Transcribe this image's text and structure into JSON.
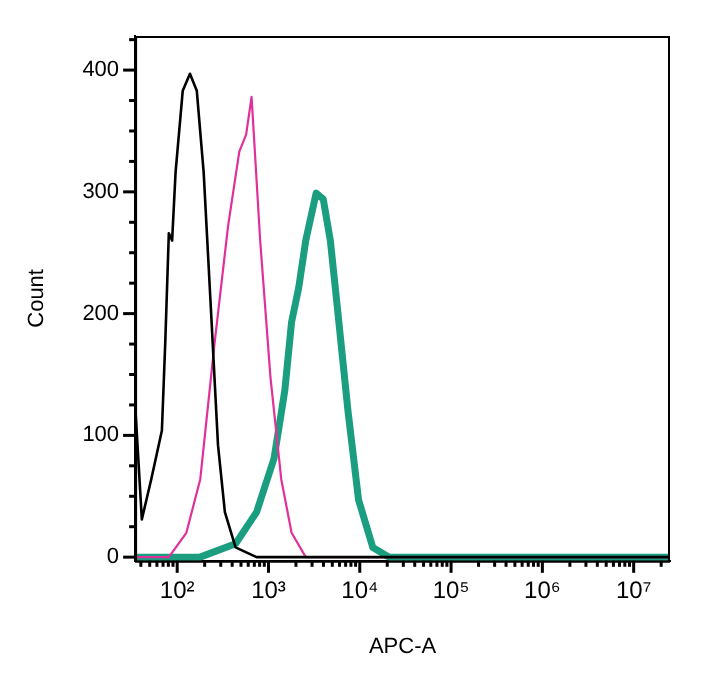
{
  "chart_data": {
    "type": "line",
    "xlabel": "APC-A",
    "ylabel": "Count",
    "log": "x",
    "grid": false,
    "legend": false,
    "marker": "none",
    "line_style": "solid",
    "xlim": [
      34.6,
      25000000
    ],
    "ylim": [
      -3,
      428
    ],
    "xticks": [
      {
        "value": 40,
        "label": null
      },
      {
        "value": 50,
        "label": null
      },
      {
        "value": 60,
        "label": null
      },
      {
        "value": 70,
        "label": null
      },
      {
        "value": 80,
        "label": null
      },
      {
        "value": 90,
        "label": null
      },
      {
        "value": 100,
        "label": "10²"
      },
      {
        "value": 200,
        "label": null
      },
      {
        "value": 300,
        "label": null
      },
      {
        "value": 400,
        "label": null
      },
      {
        "value": 500,
        "label": null
      },
      {
        "value": 600,
        "label": null
      },
      {
        "value": 700,
        "label": null
      },
      {
        "value": 800,
        "label": null
      },
      {
        "value": 900,
        "label": null
      },
      {
        "value": 1000,
        "label": "10³"
      },
      {
        "value": 2000,
        "label": null
      },
      {
        "value": 3000,
        "label": null
      },
      {
        "value": 4000,
        "label": null
      },
      {
        "value": 5000,
        "label": null
      },
      {
        "value": 6000,
        "label": null
      },
      {
        "value": 7000,
        "label": null
      },
      {
        "value": 8000,
        "label": null
      },
      {
        "value": 9000,
        "label": null
      },
      {
        "value": 10000,
        "label": "10⁴"
      },
      {
        "value": 20000,
        "label": null
      },
      {
        "value": 30000,
        "label": null
      },
      {
        "value": 40000,
        "label": null
      },
      {
        "value": 50000,
        "label": null
      },
      {
        "value": 60000,
        "label": null
      },
      {
        "value": 70000,
        "label": null
      },
      {
        "value": 80000,
        "label": null
      },
      {
        "value": 90000,
        "label": null
      },
      {
        "value": 100000,
        "label": "10⁵"
      },
      {
        "value": 200000,
        "label": null
      },
      {
        "value": 300000,
        "label": null
      },
      {
        "value": 400000,
        "label": null
      },
      {
        "value": 500000,
        "label": null
      },
      {
        "value": 600000,
        "label": null
      },
      {
        "value": 700000,
        "label": null
      },
      {
        "value": 800000,
        "label": null
      },
      {
        "value": 900000,
        "label": null
      },
      {
        "value": 1000000,
        "label": "10⁶"
      },
      {
        "value": 2000000,
        "label": null
      },
      {
        "value": 3000000,
        "label": null
      },
      {
        "value": 4000000,
        "label": null
      },
      {
        "value": 5000000,
        "label": null
      },
      {
        "value": 6000000,
        "label": null
      },
      {
        "value": 7000000,
        "label": null
      },
      {
        "value": 8000000,
        "label": null
      },
      {
        "value": 9000000,
        "label": null
      },
      {
        "value": 10000000,
        "label": "10⁷"
      },
      {
        "value": 20000000,
        "label": null
      }
    ],
    "yticks": [
      0,
      {
        "value": 25,
        "label": null
      },
      {
        "value": 50,
        "label": null
      },
      {
        "value": 75,
        "label": null
      },
      100,
      {
        "value": 125,
        "label": null
      },
      {
        "value": 150,
        "label": null
      },
      {
        "value": 175,
        "label": null
      },
      200,
      {
        "value": 225,
        "label": null
      },
      {
        "value": 250,
        "label": null
      },
      {
        "value": 275,
        "label": null
      },
      300,
      {
        "value": 325,
        "label": null
      },
      {
        "value": 350,
        "label": null
      },
      {
        "value": 375,
        "label": null
      },
      400,
      {
        "value": 425,
        "label": null
      }
    ],
    "series": [
      {
        "color": "#000000",
        "x": [
          34.6,
          41,
          52,
          68,
          74,
          81,
          88,
          96,
          115,
          138,
          164,
          195,
          234,
          280,
          333,
          436,
          740,
          25000000
        ],
        "values": [
          126,
          31,
          64,
          104,
          176,
          266,
          260,
          316,
          383,
          397,
          383,
          316,
          204,
          92,
          37,
          8,
          0,
          0
        ]
      },
      {
        "color": "#e0309a",
        "x": [
          34.6,
          81,
          126,
          179,
          257,
          361,
          479,
          569,
          653,
          811,
          1050,
          1380,
          1790,
          2560,
          25000000
        ],
        "values": [
          0,
          0,
          20,
          64,
          176,
          272,
          333,
          347,
          378,
          260,
          148,
          64,
          20,
          0,
          0
        ]
      },
      {
        "color": "#1a9e7f",
        "x": [
          34.6,
          178,
          436,
          741,
          1150,
          1510,
          1790,
          2140,
          2560,
          3330,
          3980,
          4760,
          5700,
          7430,
          9700,
          13900,
          21000,
          25000000
        ],
        "values": [
          0,
          0,
          11,
          37,
          81,
          137,
          193,
          221,
          260,
          299,
          294,
          260,
          204,
          120,
          47,
          8,
          0,
          0
        ]
      }
    ]
  }
}
